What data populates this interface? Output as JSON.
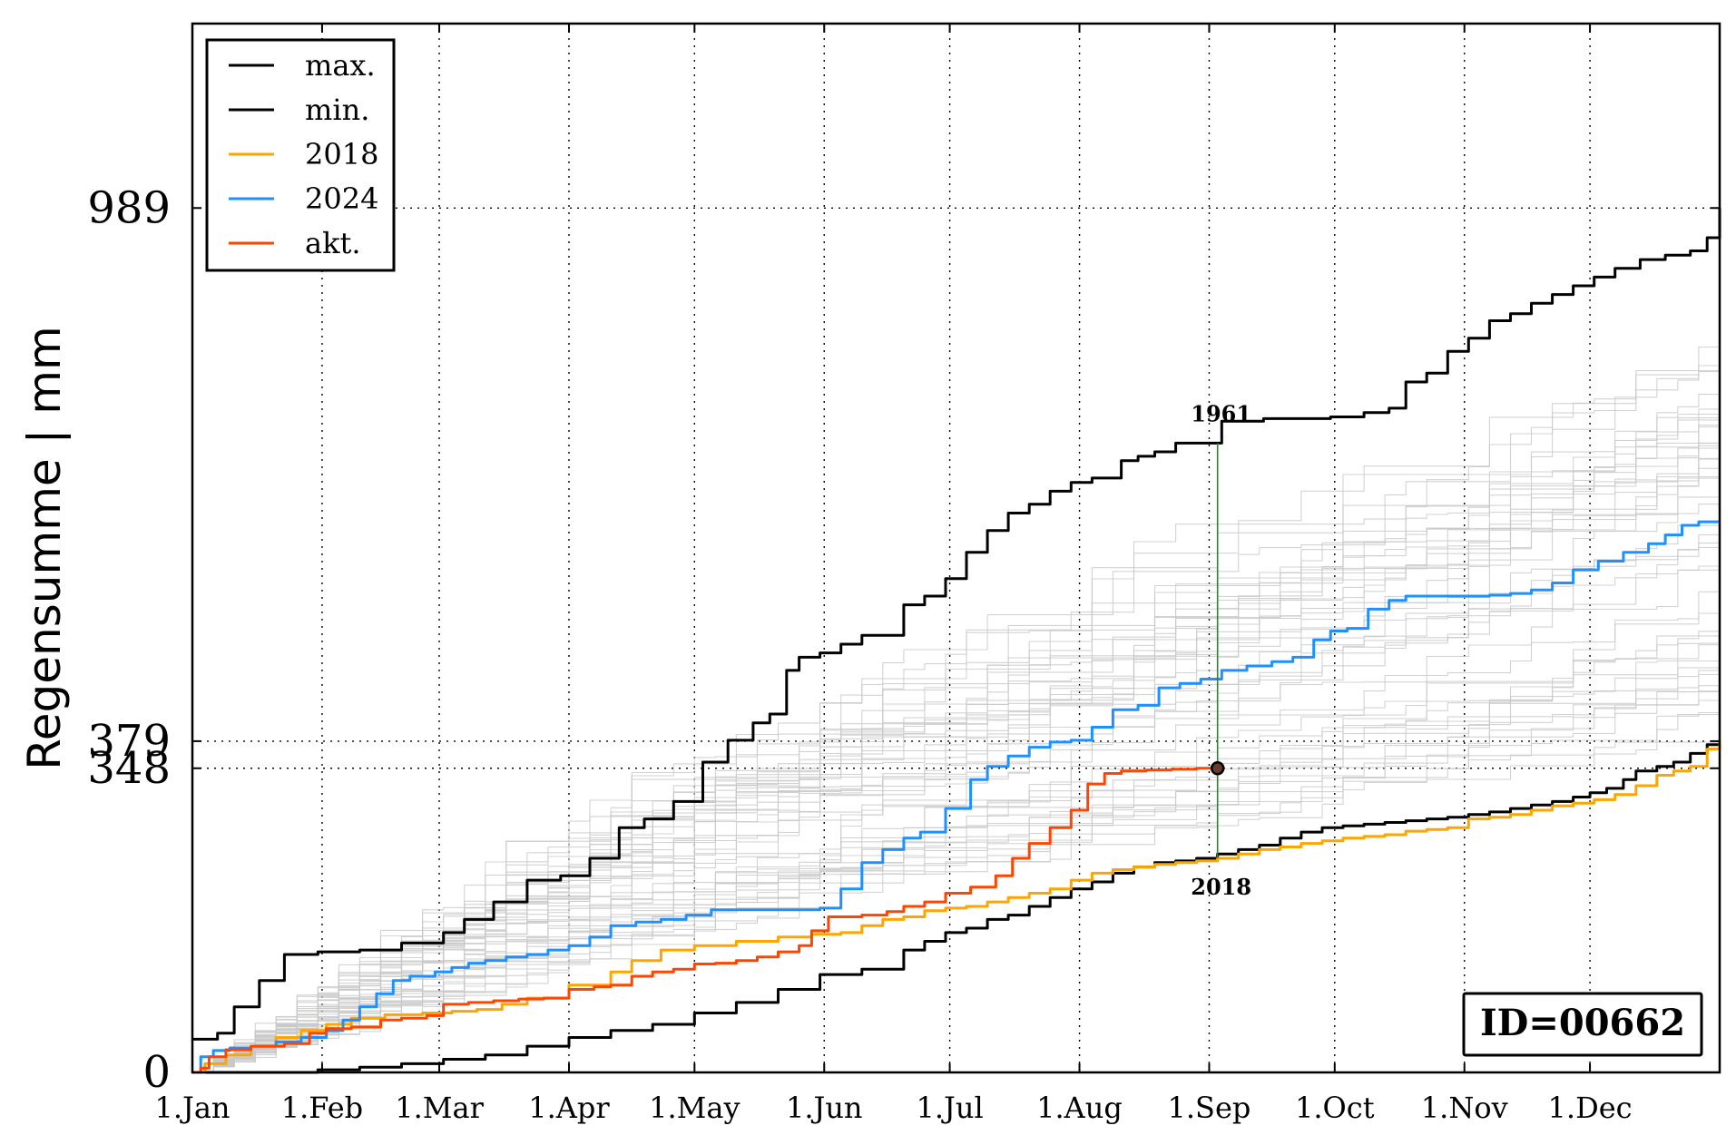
{
  "chart_data": {
    "type": "line",
    "title": "",
    "xlabel": "",
    "ylabel": "Regensumme | mm",
    "x_range": [
      "1.Jan",
      "31.Dec"
    ],
    "ylim": [
      0,
      1200
    ],
    "x_ticks": [
      {
        "label": "1.Jan",
        "day": 0
      },
      {
        "label": "1.Feb",
        "day": 31
      },
      {
        "label": "1.Mar",
        "day": 59
      },
      {
        "label": "1.Apr",
        "day": 90
      },
      {
        "label": "1.May",
        "day": 120
      },
      {
        "label": "1.Jun",
        "day": 151
      },
      {
        "label": "1.Jul",
        "day": 181
      },
      {
        "label": "1.Aug",
        "day": 212
      },
      {
        "label": "1.Sep",
        "day": 243
      },
      {
        "label": "1.Oct",
        "day": 273
      },
      {
        "label": "1.Nov",
        "day": 304
      },
      {
        "label": "1.Dec",
        "day": 334
      }
    ],
    "y_ticks": [
      {
        "label": "0",
        "value": 0
      },
      {
        "label": "348",
        "value": 348
      },
      {
        "label": "379",
        "value": 379
      },
      {
        "label": "989",
        "value": 989
      }
    ],
    "grid": true,
    "legend_position": "top-left",
    "series": [
      {
        "name": "max.",
        "color": "#000000",
        "points": [
          [
            0,
            38
          ],
          [
            6,
            45
          ],
          [
            10,
            75
          ],
          [
            16,
            105
          ],
          [
            22,
            135
          ],
          [
            30,
            138
          ],
          [
            40,
            140
          ],
          [
            50,
            148
          ],
          [
            60,
            160
          ],
          [
            65,
            175
          ],
          [
            72,
            195
          ],
          [
            80,
            220
          ],
          [
            88,
            225
          ],
          [
            95,
            245
          ],
          [
            102,
            280
          ],
          [
            108,
            290
          ],
          [
            115,
            310
          ],
          [
            122,
            355
          ],
          [
            128,
            380
          ],
          [
            134,
            400
          ],
          [
            138,
            410
          ],
          [
            142,
            460
          ],
          [
            145,
            475
          ],
          [
            150,
            480
          ],
          [
            155,
            490
          ],
          [
            160,
            500
          ],
          [
            170,
            535
          ],
          [
            175,
            545
          ],
          [
            180,
            565
          ],
          [
            185,
            595
          ],
          [
            190,
            620
          ],
          [
            195,
            640
          ],
          [
            200,
            650
          ],
          [
            205,
            665
          ],
          [
            210,
            675
          ],
          [
            215,
            680
          ],
          [
            222,
            700
          ],
          [
            226,
            705
          ],
          [
            230,
            710
          ],
          [
            235,
            720
          ],
          [
            239,
            720
          ],
          [
            242,
            720
          ],
          [
            246,
            745
          ],
          [
            256,
            748
          ],
          [
            263,
            748
          ],
          [
            272,
            750
          ],
          [
            280,
            755
          ],
          [
            286,
            760
          ],
          [
            290,
            790
          ],
          [
            295,
            800
          ],
          [
            300,
            825
          ],
          [
            305,
            840
          ],
          [
            310,
            860
          ],
          [
            315,
            868
          ],
          [
            320,
            880
          ],
          [
            325,
            890
          ],
          [
            330,
            900
          ],
          [
            335,
            910
          ],
          [
            340,
            920
          ],
          [
            346,
            930
          ],
          [
            352,
            935
          ],
          [
            358,
            940
          ],
          [
            362,
            955
          ],
          [
            365,
            989
          ]
        ]
      },
      {
        "name": "min.",
        "color": "#000000",
        "points": [
          [
            0,
            0
          ],
          [
            15,
            0
          ],
          [
            30,
            3
          ],
          [
            40,
            6
          ],
          [
            50,
            10
          ],
          [
            60,
            15
          ],
          [
            70,
            20
          ],
          [
            80,
            30
          ],
          [
            90,
            40
          ],
          [
            100,
            48
          ],
          [
            110,
            55
          ],
          [
            120,
            68
          ],
          [
            130,
            80
          ],
          [
            140,
            95
          ],
          [
            150,
            112
          ],
          [
            160,
            118
          ],
          [
            170,
            140
          ],
          [
            175,
            150
          ],
          [
            180,
            160
          ],
          [
            185,
            165
          ],
          [
            190,
            175
          ],
          [
            195,
            180
          ],
          [
            200,
            190
          ],
          [
            205,
            200
          ],
          [
            210,
            210
          ],
          [
            215,
            218
          ],
          [
            220,
            228
          ],
          [
            225,
            235
          ],
          [
            230,
            240
          ],
          [
            235,
            242
          ],
          [
            240,
            245
          ],
          [
            245,
            250
          ],
          [
            250,
            255
          ],
          [
            255,
            260
          ],
          [
            260,
            268
          ],
          [
            265,
            275
          ],
          [
            270,
            280
          ],
          [
            275,
            282
          ],
          [
            280,
            284
          ],
          [
            285,
            286
          ],
          [
            290,
            288
          ],
          [
            295,
            290
          ],
          [
            300,
            292
          ],
          [
            305,
            295
          ],
          [
            310,
            298
          ],
          [
            315,
            302
          ],
          [
            320,
            306
          ],
          [
            325,
            310
          ],
          [
            330,
            315
          ],
          [
            334,
            320
          ],
          [
            338,
            325
          ],
          [
            342,
            335
          ],
          [
            345,
            345
          ],
          [
            350,
            350
          ],
          [
            354,
            355
          ],
          [
            358,
            365
          ],
          [
            362,
            375
          ],
          [
            365,
            379
          ]
        ]
      },
      {
        "name": "2018",
        "color": "#FFA500",
        "points": [
          [
            0,
            0
          ],
          [
            3,
            10
          ],
          [
            8,
            20
          ],
          [
            14,
            30
          ],
          [
            20,
            40
          ],
          [
            26,
            48
          ],
          [
            32,
            55
          ],
          [
            38,
            62
          ],
          [
            46,
            66
          ],
          [
            55,
            68
          ],
          [
            62,
            70
          ],
          [
            68,
            72
          ],
          [
            74,
            78
          ],
          [
            80,
            85
          ],
          [
            90,
            100
          ],
          [
            100,
            115
          ],
          [
            105,
            128
          ],
          [
            112,
            140
          ],
          [
            120,
            145
          ],
          [
            130,
            150
          ],
          [
            140,
            155
          ],
          [
            148,
            158
          ],
          [
            155,
            160
          ],
          [
            160,
            168
          ],
          [
            165,
            175
          ],
          [
            170,
            178
          ],
          [
            175,
            185
          ],
          [
            180,
            188
          ],
          [
            185,
            190
          ],
          [
            190,
            195
          ],
          [
            195,
            200
          ],
          [
            200,
            205
          ],
          [
            205,
            210
          ],
          [
            210,
            220
          ],
          [
            215,
            228
          ],
          [
            220,
            232
          ],
          [
            225,
            235
          ],
          [
            230,
            238
          ],
          [
            235,
            240
          ],
          [
            240,
            242
          ],
          [
            245,
            245
          ],
          [
            250,
            250
          ],
          [
            255,
            255
          ],
          [
            260,
            258
          ],
          [
            265,
            262
          ],
          [
            270,
            265
          ],
          [
            275,
            268
          ],
          [
            280,
            270
          ],
          [
            285,
            272
          ],
          [
            290,
            276
          ],
          [
            295,
            278
          ],
          [
            300,
            280
          ],
          [
            305,
            290
          ],
          [
            310,
            292
          ],
          [
            315,
            295
          ],
          [
            320,
            300
          ],
          [
            325,
            305
          ],
          [
            330,
            308
          ],
          [
            335,
            312
          ],
          [
            340,
            318
          ],
          [
            345,
            328
          ],
          [
            350,
            340
          ],
          [
            354,
            345
          ],
          [
            358,
            350
          ],
          [
            362,
            370
          ],
          [
            365,
            379
          ]
        ]
      },
      {
        "name": "2024",
        "color": "#1E90FF",
        "points": [
          [
            0,
            0
          ],
          [
            2,
            18
          ],
          [
            5,
            25
          ],
          [
            9,
            28
          ],
          [
            14,
            30
          ],
          [
            20,
            35
          ],
          [
            26,
            40
          ],
          [
            32,
            48
          ],
          [
            36,
            60
          ],
          [
            40,
            75
          ],
          [
            44,
            90
          ],
          [
            48,
            105
          ],
          [
            52,
            110
          ],
          [
            58,
            115
          ],
          [
            62,
            120
          ],
          [
            66,
            125
          ],
          [
            70,
            128
          ],
          [
            75,
            132
          ],
          [
            80,
            135
          ],
          [
            85,
            140
          ],
          [
            90,
            145
          ],
          [
            95,
            155
          ],
          [
            100,
            168
          ],
          [
            106,
            172
          ],
          [
            112,
            175
          ],
          [
            118,
            180
          ],
          [
            124,
            186
          ],
          [
            130,
            186
          ],
          [
            140,
            186
          ],
          [
            145,
            186
          ],
          [
            150,
            188
          ],
          [
            155,
            210
          ],
          [
            160,
            240
          ],
          [
            165,
            255
          ],
          [
            170,
            268
          ],
          [
            174,
            275
          ],
          [
            180,
            302
          ],
          [
            186,
            335
          ],
          [
            190,
            350
          ],
          [
            195,
            362
          ],
          [
            200,
            372
          ],
          [
            205,
            378
          ],
          [
            210,
            380
          ],
          [
            215,
            395
          ],
          [
            220,
            415
          ],
          [
            226,
            420
          ],
          [
            231,
            440
          ],
          [
            236,
            445
          ],
          [
            241,
            450
          ],
          [
            246,
            460
          ],
          [
            252,
            465
          ],
          [
            258,
            470
          ],
          [
            263,
            475
          ],
          [
            268,
            495
          ],
          [
            272,
            505
          ],
          [
            276,
            508
          ],
          [
            281,
            530
          ],
          [
            286,
            540
          ],
          [
            290,
            545
          ],
          [
            300,
            545
          ],
          [
            310,
            546
          ],
          [
            315,
            548
          ],
          [
            320,
            552
          ],
          [
            325,
            560
          ],
          [
            330,
            575
          ],
          [
            336,
            585
          ],
          [
            342,
            595
          ],
          [
            348,
            605
          ],
          [
            352,
            615
          ],
          [
            356,
            626
          ],
          [
            360,
            630
          ],
          [
            365,
            630
          ]
        ]
      },
      {
        "name": "akt.",
        "color": "#FF4500",
        "points": [
          [
            0,
            0
          ],
          [
            2,
            5
          ],
          [
            4,
            18
          ],
          [
            8,
            26
          ],
          [
            14,
            30
          ],
          [
            22,
            33
          ],
          [
            28,
            45
          ],
          [
            32,
            50
          ],
          [
            38,
            52
          ],
          [
            45,
            60
          ],
          [
            50,
            62
          ],
          [
            56,
            65
          ],
          [
            60,
            78
          ],
          [
            66,
            80
          ],
          [
            72,
            82
          ],
          [
            78,
            84
          ],
          [
            84,
            85
          ],
          [
            90,
            95
          ],
          [
            96,
            98
          ],
          [
            100,
            100
          ],
          [
            105,
            110
          ],
          [
            110,
            115
          ],
          [
            115,
            118
          ],
          [
            120,
            124
          ],
          [
            125,
            125
          ],
          [
            130,
            128
          ],
          [
            135,
            132
          ],
          [
            140,
            138
          ],
          [
            145,
            145
          ],
          [
            148,
            162
          ],
          [
            152,
            178
          ],
          [
            160,
            180
          ],
          [
            166,
            184
          ],
          [
            170,
            190
          ],
          [
            175,
            195
          ],
          [
            180,
            205
          ],
          [
            186,
            212
          ],
          [
            192,
            225
          ],
          [
            196,
            245
          ],
          [
            200,
            262
          ],
          [
            205,
            280
          ],
          [
            210,
            300
          ],
          [
            214,
            330
          ],
          [
            218,
            342
          ],
          [
            222,
            345
          ],
          [
            228,
            346
          ],
          [
            234,
            347
          ],
          [
            240,
            348
          ],
          [
            245,
            348
          ]
        ]
      }
    ],
    "background_series_note": "",
    "highlight": {
      "day": 245,
      "value": 348,
      "top_label": "1961",
      "top_value": 720,
      "bottom_label": "2018",
      "bottom_value": 245,
      "line_color": "#228B22",
      "marker_fill": "#6B3A2A"
    },
    "id_box": "ID=00662"
  }
}
